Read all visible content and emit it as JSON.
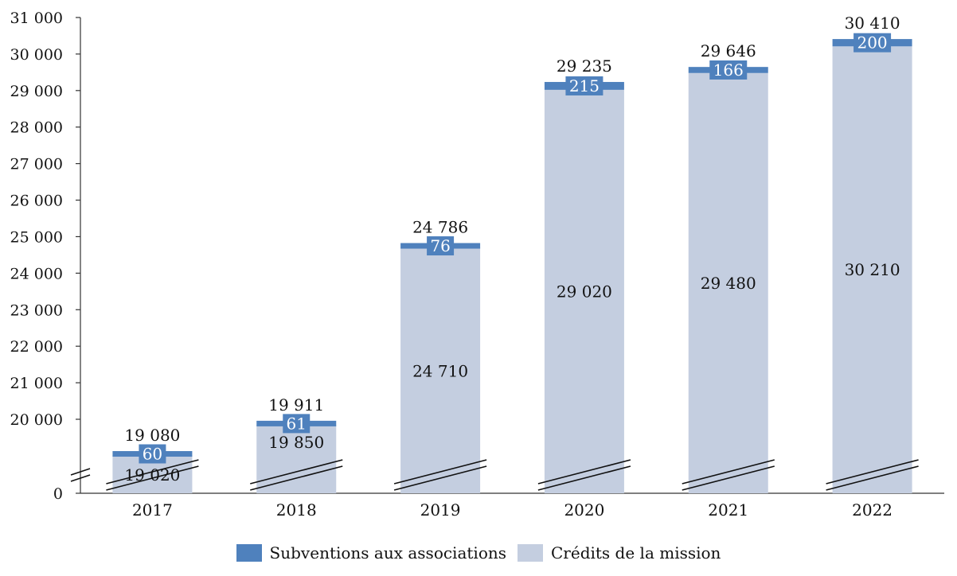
{
  "colors": {
    "subventions": "#4f81bd",
    "credits": "#c4cee0",
    "axis": "#333333",
    "label_light": "#ffffff",
    "label_dark": "#111111"
  },
  "chart_data": {
    "type": "bar",
    "stacked": true,
    "categories": [
      "2017",
      "2018",
      "2019",
      "2020",
      "2021",
      "2022"
    ],
    "series": [
      {
        "name": "Crédits de la mission",
        "values": [
          19020,
          19850,
          24710,
          29020,
          29480,
          30210
        ]
      },
      {
        "name": "Subventions aux associations",
        "values": [
          60,
          61,
          76,
          215,
          166,
          200
        ]
      }
    ],
    "totals": [
      19080,
      19911,
      24786,
      29235,
      29646,
      30410
    ],
    "value_labels": {
      "credits": [
        "19 020",
        "19 850",
        "24 710",
        "29 020",
        "29 480",
        "30 210"
      ],
      "subventions": [
        "60",
        "61",
        "76",
        "215",
        "166",
        "200"
      ],
      "totals": [
        "19 080",
        "19 911",
        "24 786",
        "29 235",
        "29 646",
        "30 410"
      ]
    },
    "y_ticks": [
      {
        "value": 20000,
        "label": "20 000"
      },
      {
        "value": 21000,
        "label": "21 000"
      },
      {
        "value": 22000,
        "label": "22 000"
      },
      {
        "value": 23000,
        "label": "23 000"
      },
      {
        "value": 24000,
        "label": "24 000"
      },
      {
        "value": 25000,
        "label": "25 000"
      },
      {
        "value": 26000,
        "label": "26 000"
      },
      {
        "value": 27000,
        "label": "27 000"
      },
      {
        "value": 28000,
        "label": "28 000"
      },
      {
        "value": 29000,
        "label": "29 000"
      },
      {
        "value": 30000,
        "label": "30 000"
      },
      {
        "value": 31000,
        "label": "31 000"
      }
    ],
    "y_zero_label": "0",
    "ylim": [
      0,
      31000
    ],
    "axis_break": true,
    "title": "",
    "xlabel": "",
    "ylabel": "",
    "grid": false,
    "legend_position": "bottom-center"
  },
  "legend": {
    "subventions_label": "Subventions aux associations",
    "credits_label": "Crédits de la mission"
  }
}
